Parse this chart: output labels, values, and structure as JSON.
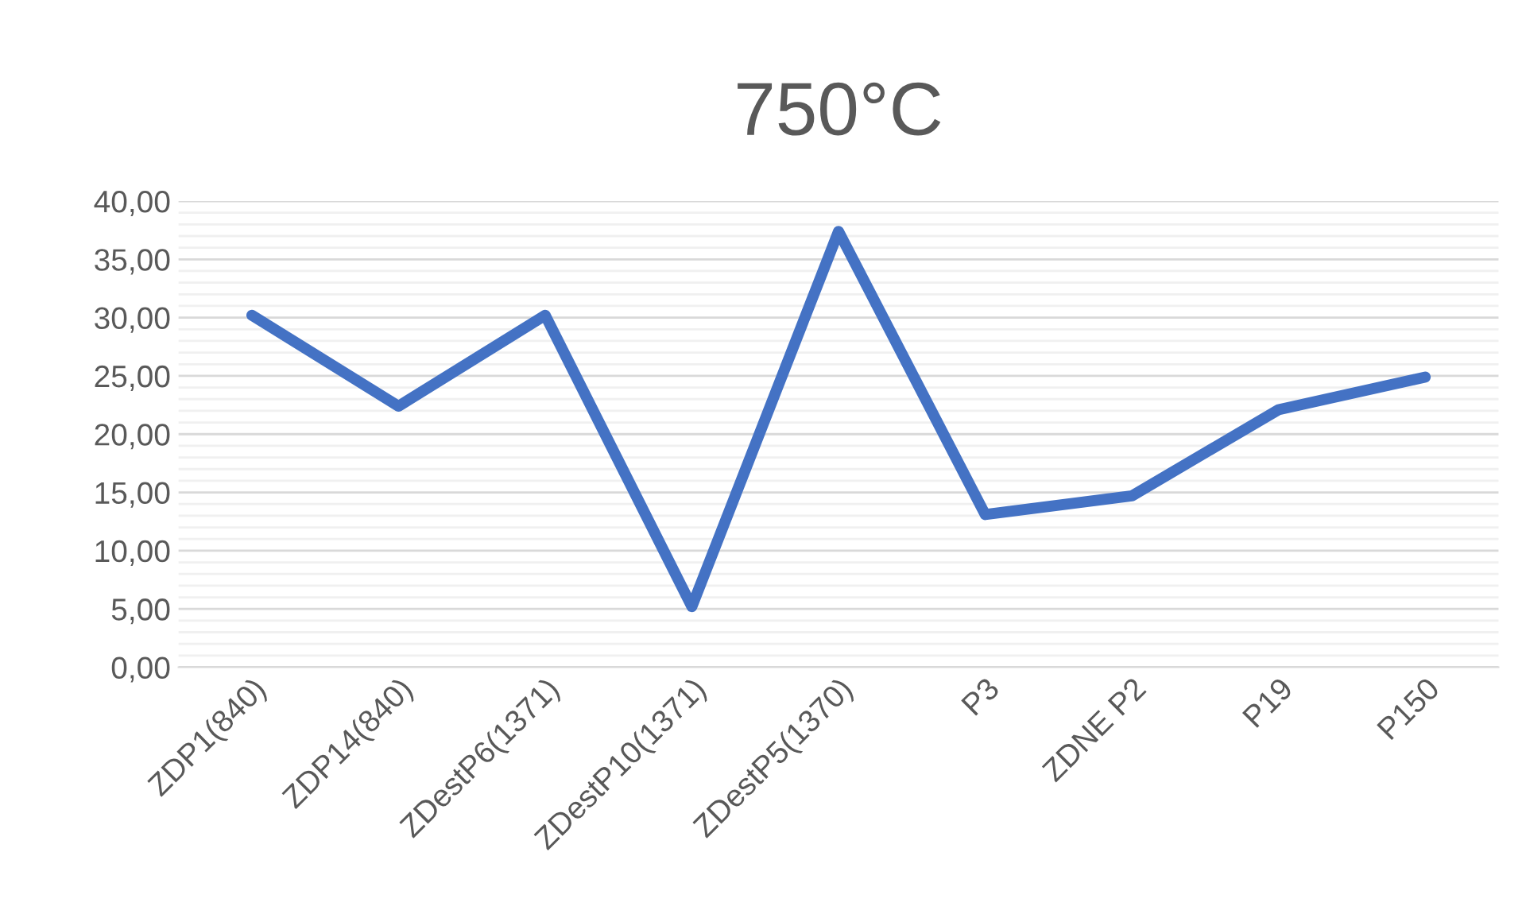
{
  "chart_data": {
    "type": "line",
    "title": "750°C",
    "categories": [
      "ZDP1(840)",
      "ZDP14(840)",
      "ZDestP6(1371)",
      "ZDestP10(1371)",
      "ZDestP5(1370)",
      "P3",
      "ZDNE P2",
      "P19",
      "P150"
    ],
    "series": [
      {
        "color": "#4472c4",
        "values": [
          30.2,
          22.4,
          30.2,
          5.2,
          37.4,
          13.1,
          14.7,
          22.1,
          24.9
        ]
      }
    ],
    "ylim": [
      0,
      40
    ],
    "yticks": [
      {
        "value": 0,
        "label": "0,00"
      },
      {
        "value": 1,
        "label": null
      },
      {
        "value": 2,
        "label": null
      },
      {
        "value": 3,
        "label": null
      },
      {
        "value": 4,
        "label": null
      },
      {
        "value": 5,
        "label": "5,00"
      },
      {
        "value": 6,
        "label": null
      },
      {
        "value": 7,
        "label": null
      },
      {
        "value": 8,
        "label": null
      },
      {
        "value": 9,
        "label": null
      },
      {
        "value": 10,
        "label": "10,00"
      },
      {
        "value": 11,
        "label": null
      },
      {
        "value": 12,
        "label": null
      },
      {
        "value": 13,
        "label": null
      },
      {
        "value": 14,
        "label": null
      },
      {
        "value": 15,
        "label": "15,00"
      },
      {
        "value": 16,
        "label": null
      },
      {
        "value": 17,
        "label": null
      },
      {
        "value": 18,
        "label": null
      },
      {
        "value": 19,
        "label": null
      },
      {
        "value": 20,
        "label": "20,00"
      },
      {
        "value": 21,
        "label": null
      },
      {
        "value": 22,
        "label": null
      },
      {
        "value": 23,
        "label": null
      },
      {
        "value": 24,
        "label": null
      },
      {
        "value": 25,
        "label": "25,00"
      },
      {
        "value": 26,
        "label": null
      },
      {
        "value": 27,
        "label": null
      },
      {
        "value": 28,
        "label": null
      },
      {
        "value": 29,
        "label": null
      },
      {
        "value": 30,
        "label": "30,00"
      },
      {
        "value": 31,
        "label": null
      },
      {
        "value": 32,
        "label": null
      },
      {
        "value": 33,
        "label": null
      },
      {
        "value": 34,
        "label": null
      },
      {
        "value": 35,
        "label": "35,00"
      },
      {
        "value": 36,
        "label": null
      },
      {
        "value": 37,
        "label": null
      },
      {
        "value": 38,
        "label": null
      },
      {
        "value": 39,
        "label": null
      },
      {
        "value": 40,
        "label": "40,00"
      }
    ],
    "grid": "y",
    "marker": "none",
    "line_style": "solid"
  }
}
